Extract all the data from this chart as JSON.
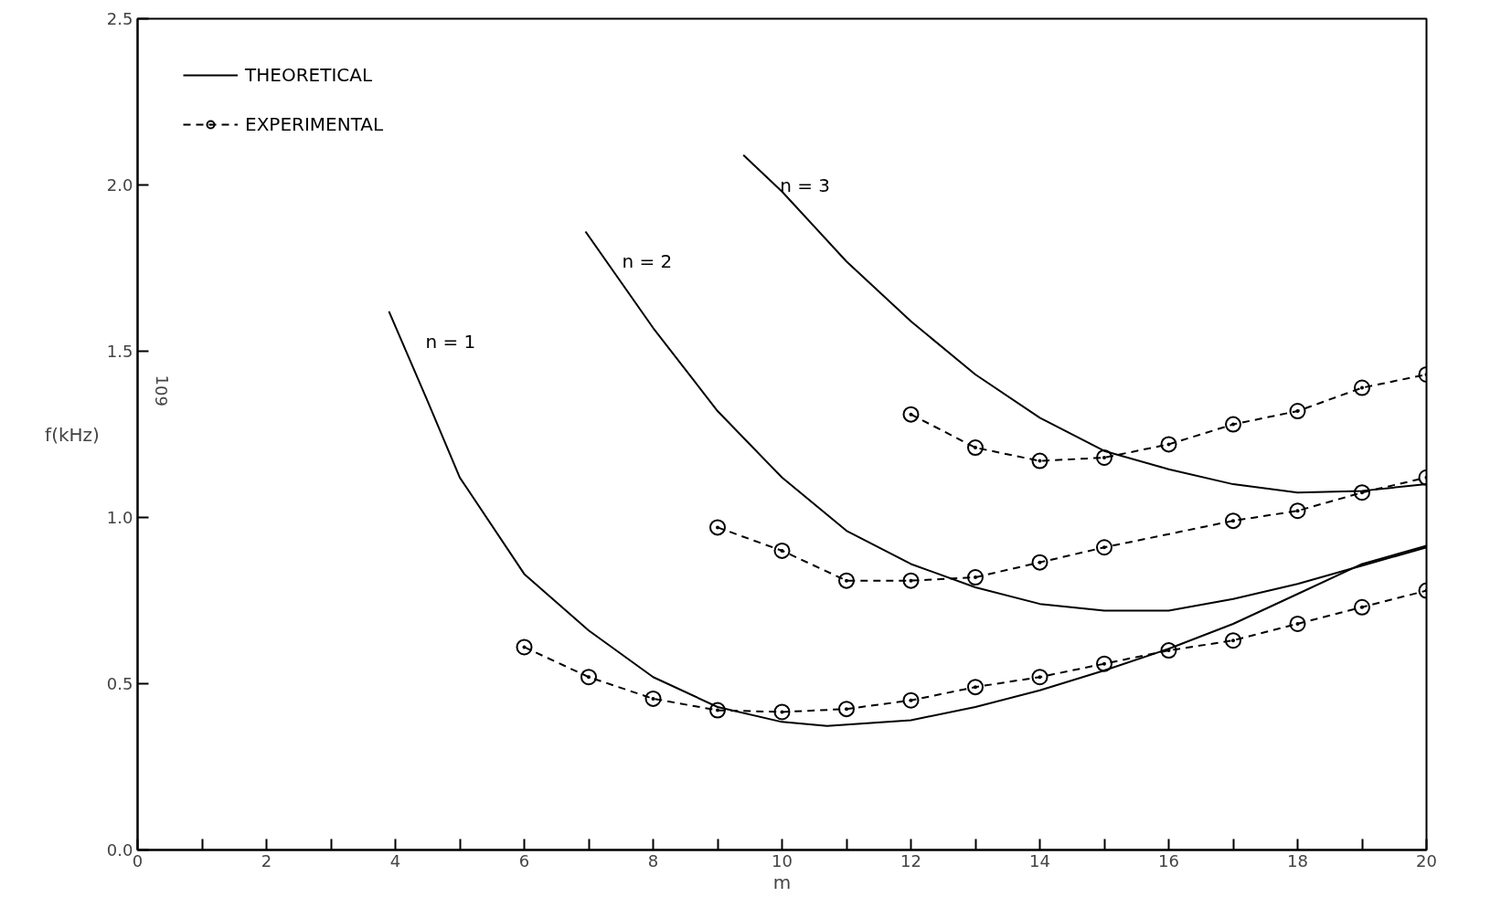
{
  "chart_data": {
    "type": "line",
    "xlabel": "m",
    "ylabel": "f(kHz)",
    "xlim": [
      0,
      20
    ],
    "ylim": [
      0,
      2.5
    ],
    "xticks": [
      0,
      {
        "value": 1,
        "label": null
      },
      2,
      {
        "value": 3,
        "label": null
      },
      4,
      {
        "value": 5,
        "label": null
      },
      6,
      {
        "value": 7,
        "label": null
      },
      8,
      {
        "value": 9,
        "label": null
      },
      10,
      {
        "value": 11,
        "label": null
      },
      12,
      {
        "value": 13,
        "label": null
      },
      14,
      {
        "value": 15,
        "label": null
      },
      16,
      {
        "value": 17,
        "label": null
      },
      18,
      {
        "value": 19,
        "label": null
      },
      20
    ],
    "yticks": [
      {
        "value": 0,
        "label": "0.0"
      },
      0.5,
      {
        "value": 1,
        "label": "1.0"
      },
      1.5,
      {
        "value": 2,
        "label": "2.0"
      },
      2.5
    ],
    "grid": false,
    "legend": "top left",
    "series": [
      {
        "name": "THEORETICAL",
        "color": "#000000",
        "line_style": "solid",
        "marker": "none",
        "x": [
          3.9,
          4.5,
          5,
          6,
          7,
          8,
          9,
          10,
          10.7,
          12,
          13,
          14,
          15,
          16,
          17,
          18,
          19,
          20
        ],
        "values": [
          1.62,
          1.35,
          1.12,
          0.83,
          0.66,
          0.52,
          0.43,
          0.385,
          0.373,
          0.39,
          0.43,
          0.48,
          0.54,
          0.605,
          0.68,
          0.77,
          0.86,
          0.915
        ]
      },
      {
        "color": "#000000",
        "line_style": "solid",
        "marker": "none",
        "x": [
          6.95,
          8,
          9,
          10,
          11,
          12,
          13,
          14,
          15,
          16,
          17,
          18,
          19,
          20
        ],
        "values": [
          1.86,
          1.57,
          1.32,
          1.12,
          0.96,
          0.86,
          0.79,
          0.74,
          0.72,
          0.72,
          0.755,
          0.8,
          0.855,
          0.91
        ]
      },
      {
        "color": "#000000",
        "line_style": "solid",
        "marker": "none",
        "x": [
          9.4,
          10,
          11,
          12,
          13,
          14,
          15,
          16,
          17,
          18,
          19,
          20
        ],
        "values": [
          2.09,
          1.98,
          1.77,
          1.59,
          1.43,
          1.3,
          1.2,
          1.145,
          1.1,
          1.075,
          1.08,
          1.1
        ]
      },
      {
        "name": "EXPERIMENTAL",
        "color": "#000000",
        "line_style": "dashed",
        "marker": "circle",
        "x": [
          6,
          7,
          8,
          9,
          10,
          11,
          12,
          13,
          14,
          15,
          16,
          17,
          18,
          19,
          20
        ],
        "values": [
          0.61,
          0.52,
          0.455,
          0.42,
          0.415,
          0.424,
          0.45,
          0.49,
          0.52,
          0.56,
          0.6,
          0.63,
          0.68,
          0.73,
          0.78
        ]
      },
      {
        "color": "#000000",
        "line_style": "dashed",
        "marker": "circle",
        "x": [
          9,
          10,
          11,
          12,
          13,
          14,
          15,
          17,
          18,
          19,
          20
        ],
        "values": [
          0.97,
          0.9,
          0.81,
          0.81,
          0.82,
          0.865,
          0.91,
          0.99,
          1.02,
          1.075,
          1.12
        ]
      },
      {
        "color": "#000000",
        "line_style": "dashed",
        "marker": "circle",
        "x": [
          12,
          13,
          14,
          15,
          16,
          17,
          18,
          19,
          20
        ],
        "values": [
          1.31,
          1.21,
          1.17,
          1.18,
          1.22,
          1.28,
          1.32,
          1.39,
          1.43
        ]
      }
    ],
    "annotations": [
      {
        "text": "n = 1",
        "x": 3.9,
        "y": 1.62
      },
      {
        "text": "n = 2",
        "x": 6.95,
        "y": 1.86
      },
      {
        "text": "n = 3",
        "x": 9.4,
        "y": 2.09
      },
      "109"
    ]
  }
}
